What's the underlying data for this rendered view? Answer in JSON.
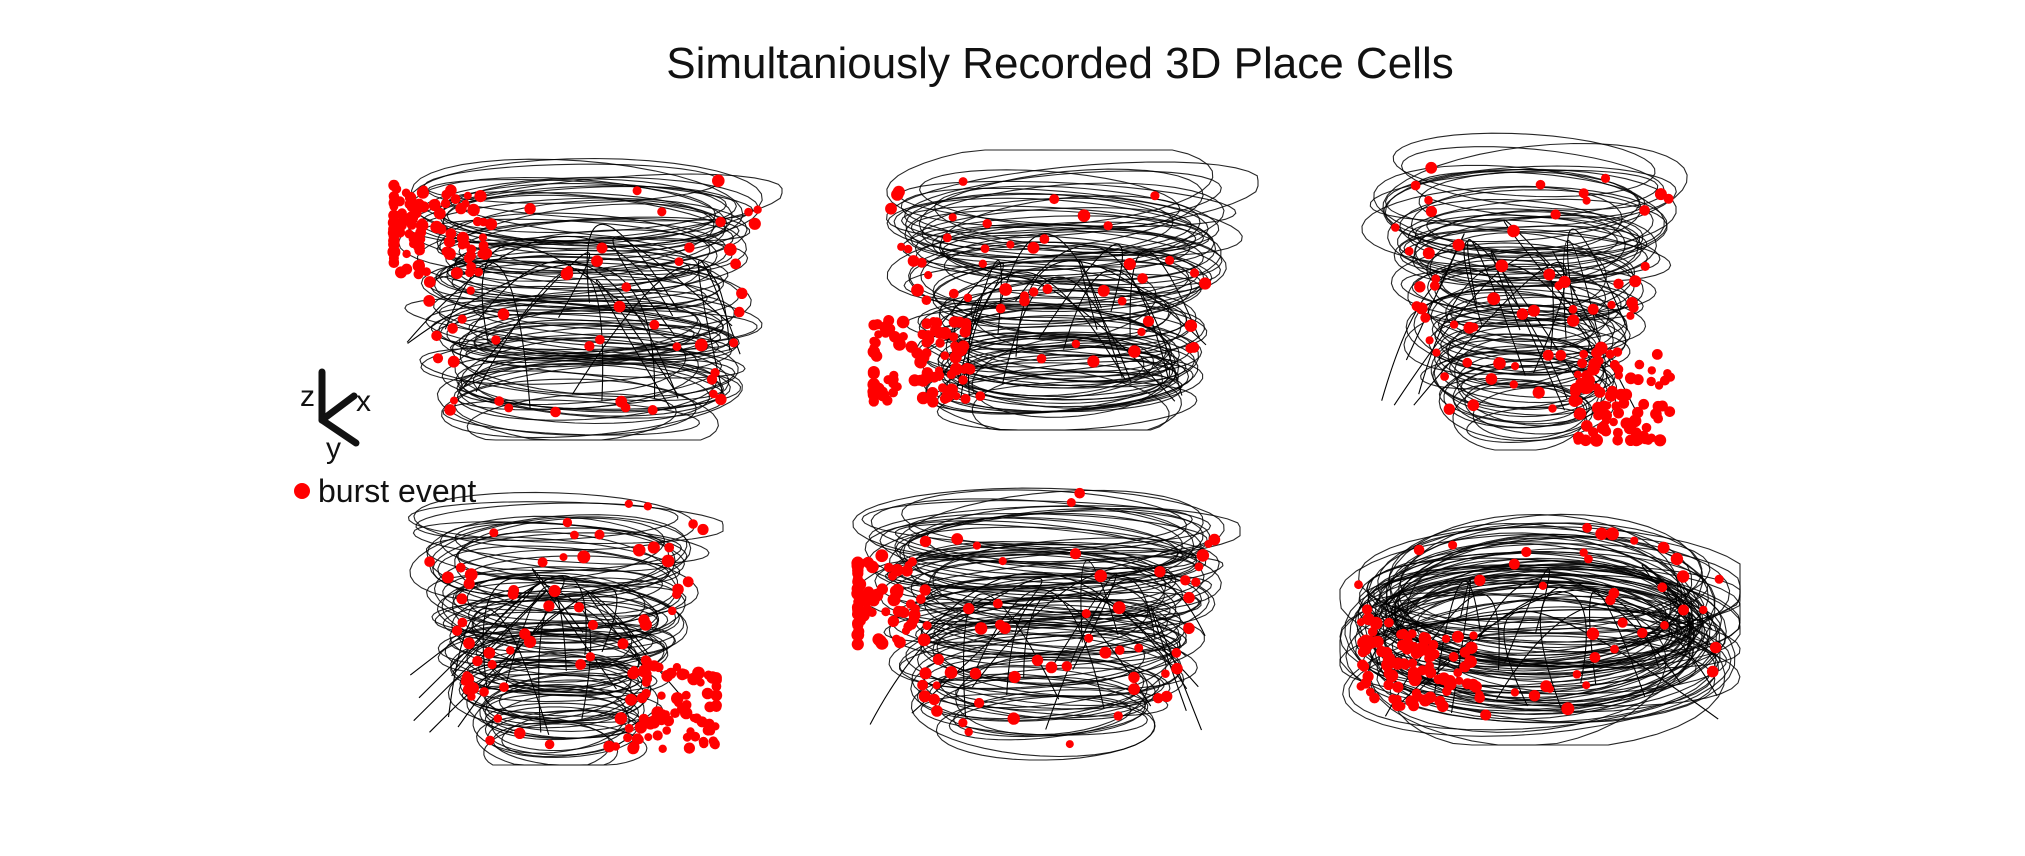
{
  "chart_data": {
    "type": "scatter",
    "title": "Simultaniously Recorded 3D Place Cells",
    "axes_orientation": {
      "z_label": "z",
      "x_label": "x",
      "y_label": "y"
    },
    "legend": {
      "entries": [
        {
          "label": "burst event",
          "color": "#ff0000",
          "marker": "filled-circle"
        }
      ],
      "placement": "left-middle"
    },
    "trajectory_color": "#000000",
    "burst_color": "#ff0000",
    "grid": false,
    "panel_count": 6,
    "panels": [
      {
        "index": 1,
        "row": 1,
        "col": 1,
        "shape": "bowl",
        "burst_focus": [
          0.1,
          0.3
        ]
      },
      {
        "index": 2,
        "row": 1,
        "col": 2,
        "shape": "rounded-bowl",
        "burst_focus": [
          0.12,
          0.75
        ]
      },
      {
        "index": 3,
        "row": 1,
        "col": 3,
        "shape": "funnel",
        "burst_focus": [
          0.8,
          0.85
        ]
      },
      {
        "index": 4,
        "row": 2,
        "col": 1,
        "shape": "funnel",
        "burst_focus": [
          0.85,
          0.8
        ]
      },
      {
        "index": 5,
        "row": 2,
        "col": 2,
        "shape": "rounded-bowl",
        "burst_focus": [
          0.05,
          0.45
        ]
      },
      {
        "index": 6,
        "row": 2,
        "col": 3,
        "shape": "flat-ellipse",
        "burst_focus": [
          0.2,
          0.7
        ]
      }
    ]
  }
}
